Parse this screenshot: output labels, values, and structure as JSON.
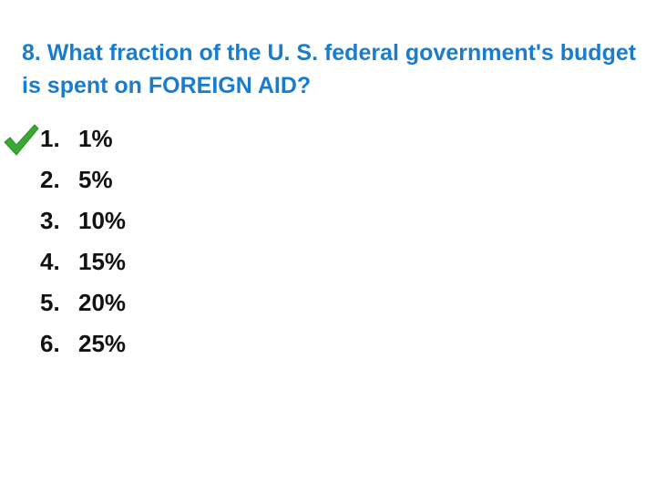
{
  "question": {
    "text": "8. What fraction of the U. S. federal government's budget is spent on FOREIGN AID?"
  },
  "options": [
    {
      "number": "1.",
      "text": "1%",
      "correct": true
    },
    {
      "number": "2.",
      "text": "5%",
      "correct": false
    },
    {
      "number": "3.",
      "text": "10%",
      "correct": false
    },
    {
      "number": "4.",
      "text": "15%",
      "correct": false
    },
    {
      "number": "5.",
      "text": "20%",
      "correct": false
    },
    {
      "number": "6.",
      "text": "25%",
      "correct": false
    }
  ],
  "colors": {
    "question_text": "#1a7ccf",
    "option_text": "#111111",
    "checkmark": "#3aa832"
  },
  "icons": {
    "correct_marker": "checkmark-icon"
  }
}
